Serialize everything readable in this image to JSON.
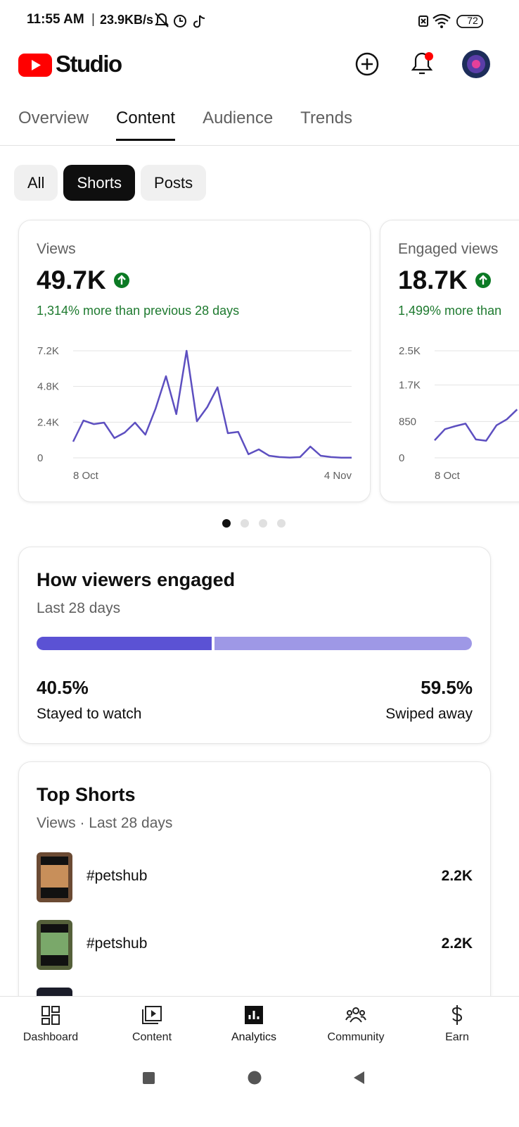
{
  "status_bar": {
    "time": "11:55 AM",
    "network_speed": "23.9KB/s",
    "battery": "72"
  },
  "header": {
    "app_name": "Studio"
  },
  "tabs": {
    "items": [
      "Overview",
      "Content",
      "Audience",
      "Trends"
    ],
    "active": 1
  },
  "filters": {
    "items": [
      "All",
      "Shorts",
      "Posts"
    ],
    "active": 1
  },
  "chart_data": [
    {
      "type": "line",
      "title": "Views",
      "headline": "49.7K",
      "subtitle": "1,314% more than previous 28 days",
      "color": "#5d4fc0",
      "grid": true,
      "x": [
        "8 Oct",
        null,
        null,
        null,
        null,
        null,
        null,
        null,
        null,
        null,
        null,
        null,
        null,
        null,
        null,
        null,
        null,
        null,
        null,
        null,
        null,
        null,
        null,
        null,
        null,
        null,
        null,
        "4 Nov"
      ],
      "values": [
        1090,
        2510,
        2270,
        2370,
        1330,
        1700,
        2370,
        1560,
        3320,
        5490,
        2940,
        7200,
        2460,
        3410,
        4740,
        1660,
        1750,
        240,
        570,
        140,
        50,
        20,
        50,
        760,
        140,
        50,
        10,
        10
      ],
      "ylim": [
        0,
        7200
      ],
      "yticks": [
        0,
        {
          "value": 2400,
          "label": "2.4K"
        },
        {
          "value": 4800,
          "label": "4.8K"
        },
        {
          "value": 7200,
          "label": "7.2K"
        }
      ]
    },
    {
      "type": "line",
      "title": "Engaged views",
      "headline": "18.7K",
      "subtitle": "1,499% more than",
      "color": "#5d4fc0",
      "grid": true,
      "x": [
        "8 Oct",
        null,
        null,
        null,
        null,
        null,
        null,
        null,
        null
      ],
      "values": [
        410,
        670,
        740,
        800,
        430,
        400,
        760,
        900,
        1130
      ],
      "ylim": [
        0,
        2500
      ],
      "yticks": [
        0,
        850,
        {
          "value": 1700,
          "label": "1.7K"
        },
        {
          "value": 2500,
          "label": "2.5K"
        }
      ]
    }
  ],
  "engagement": {
    "title": "How viewers engaged",
    "subtitle": "Last 28 days",
    "segments": [
      {
        "name": "Stayed to watch",
        "value": 40.5,
        "value_label": "40.5%",
        "color": "#5b52d4"
      },
      {
        "name": "Swiped away",
        "value": 59.5,
        "value_label": "59.5%",
        "color": "#9e98e6"
      }
    ]
  },
  "top_shorts": {
    "title": "Top Shorts",
    "subtitle": "Views · Last 28 days",
    "items": [
      {
        "title": "#petshub",
        "views": "2.2K"
      },
      {
        "title": "#petshub",
        "views": "2.2K"
      }
    ]
  },
  "bottom_nav": {
    "items": [
      "Dashboard",
      "Content",
      "Analytics",
      "Community",
      "Earn"
    ],
    "active": 2
  }
}
